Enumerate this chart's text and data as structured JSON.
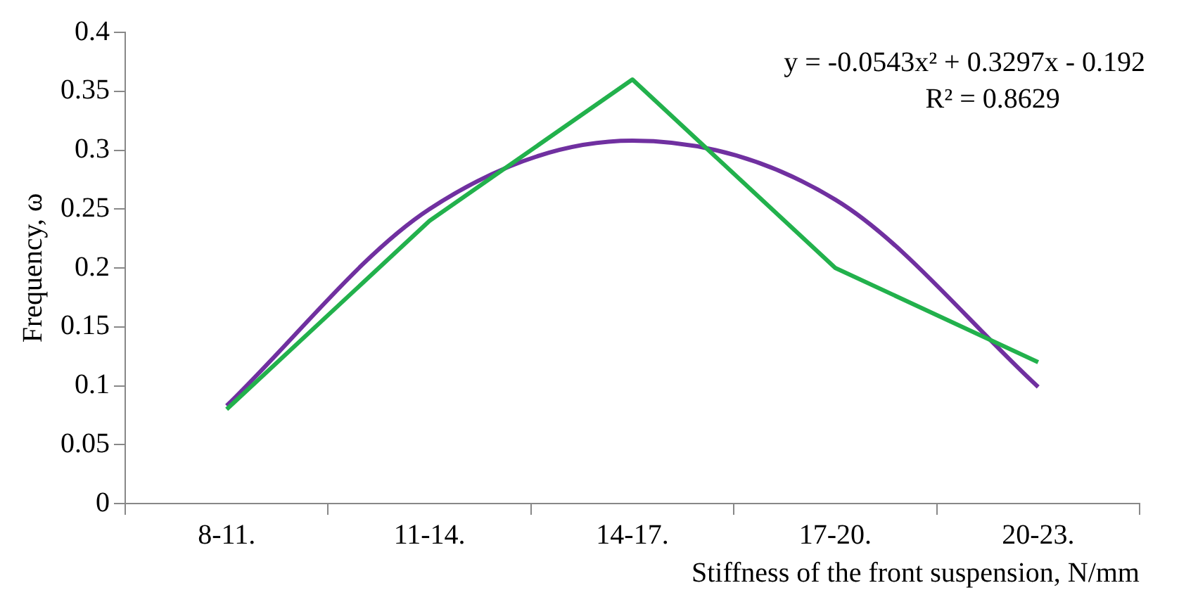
{
  "chart_data": {
    "type": "line",
    "xlabel": "Stiffness of the front suspension, N/mm",
    "ylabel": "Frequency, ω",
    "categories": [
      "8-11.",
      "11-14.",
      "14-17.",
      "17-20.",
      "20-23."
    ],
    "series": [
      {
        "type": "line",
        "color": "#22b14c",
        "values": [
          0.08,
          0.24,
          0.36,
          0.2,
          0.12
        ]
      },
      {
        "type": "line",
        "color": "#7030a0",
        "x": [
          "8-11.",
          "11-14.",
          "14-17.",
          "17-20.",
          "20-23."
        ],
        "values": [
          0.083,
          0.25,
          0.308,
          0.258,
          0.099
        ]
      }
    ],
    "annotations": [
      "y = -0.0543x² + 0.3297x - 0.192",
      "R² = 0.8629"
    ],
    "ylim": [
      0,
      0.4
    ],
    "yticks": [
      0,
      0.05,
      0.1,
      0.15,
      0.2,
      0.25,
      0.3,
      0.35,
      0.4
    ],
    "grid": false,
    "legend": false,
    "marker": "none",
    "line_style": "solid"
  }
}
